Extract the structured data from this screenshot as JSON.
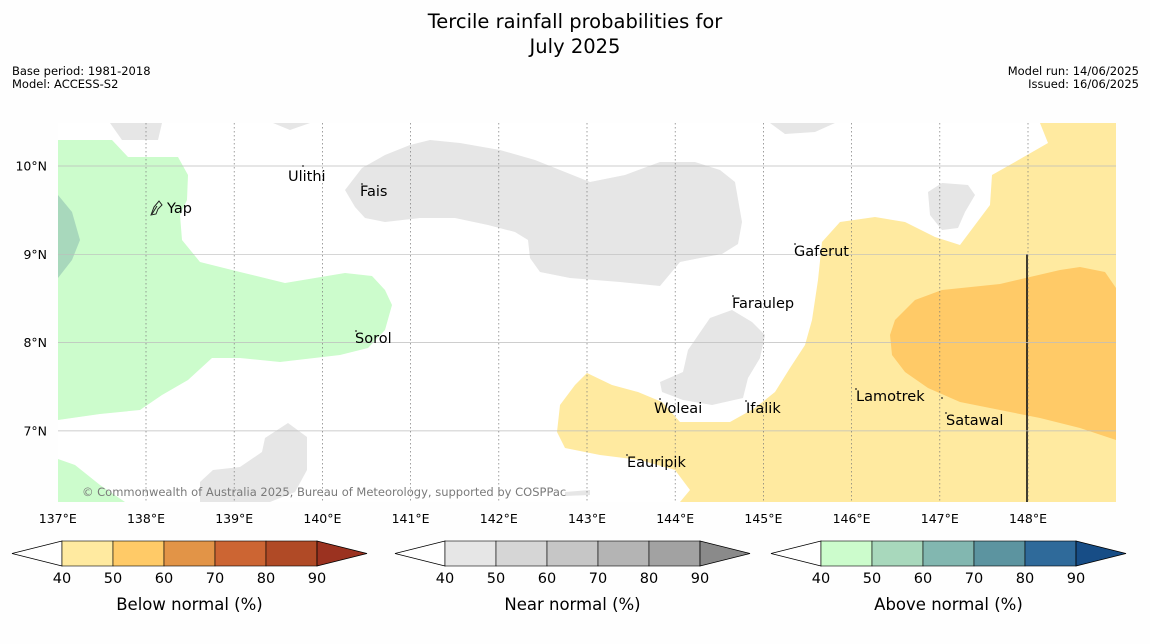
{
  "title": {
    "line1": "Tercile rainfall probabilities for",
    "line2": "July 2025"
  },
  "meta_left": {
    "base_period": "Base period: 1981-2018",
    "model": "Model: ACCESS-S2"
  },
  "meta_right": {
    "model_run": "Model run: 14/06/2025",
    "issued": "Issued: 16/06/2025"
  },
  "map": {
    "lat_labels": [
      "10°N",
      "9°N",
      "8°N",
      "7°N"
    ],
    "lon_labels": [
      "137°E",
      "138°E",
      "139°E",
      "140°E",
      "141°E",
      "142°E",
      "143°E",
      "144°E",
      "145°E",
      "146°E",
      "147°E",
      "148°E"
    ],
    "places": [
      "Ulithi",
      "Fais",
      "Yap",
      "Gaferut",
      "Faraulep",
      "Sorol",
      "Lamotrek",
      "Woleai",
      "Ifalik",
      "Satawal",
      "Eauripik"
    ],
    "copyright": "© Commonwealth of Australia 2025, Bureau of Meteorology, supported by COSPPac"
  },
  "legends": [
    {
      "title": "Below normal (%)",
      "ticks": [
        "40",
        "50",
        "60",
        "70",
        "80",
        "90"
      ],
      "colors": [
        "#ffffff",
        "#ffeaa0",
        "#ffca67",
        "#e29447",
        "#cc6533",
        "#b04a26",
        "#9b3220"
      ]
    },
    {
      "title": "Near normal (%)",
      "ticks": [
        "40",
        "50",
        "60",
        "70",
        "80",
        "90"
      ],
      "colors": [
        "#ffffff",
        "#e6e6e6",
        "#d6d6d6",
        "#c6c6c6",
        "#b4b4b4",
        "#a2a2a2",
        "#8a8a8a"
      ]
    },
    {
      "title": "Above normal (%)",
      "ticks": [
        "40",
        "50",
        "60",
        "70",
        "80",
        "90"
      ],
      "colors": [
        "#ffffff",
        "#ccfccc",
        "#a8d8bc",
        "#82b7b0",
        "#5c94a0",
        "#2f6a9a",
        "#174d86"
      ]
    }
  ]
}
